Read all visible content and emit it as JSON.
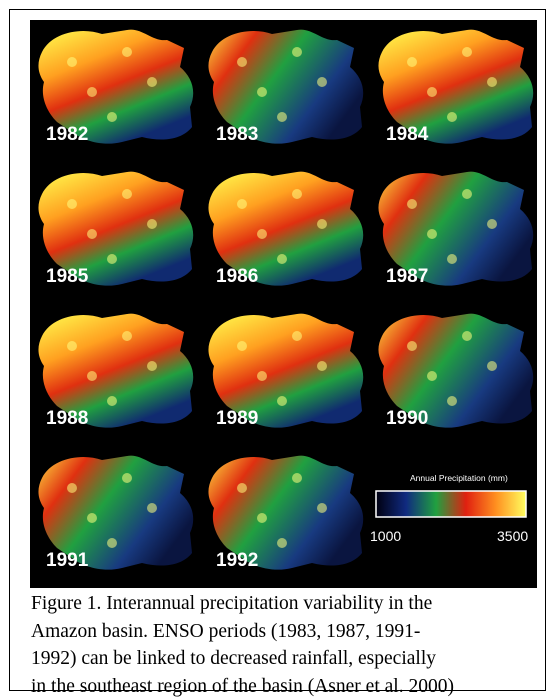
{
  "figure": {
    "years": [
      "1982",
      "1983",
      "1984",
      "1985",
      "1986",
      "1987",
      "1988",
      "1989",
      "1990",
      "1991",
      "1992"
    ],
    "legend": {
      "title": "Annual Precipitation (mm)",
      "min_label": "1000",
      "max_label": "3500"
    },
    "caption": {
      "lines": [
        "Figure 1.  Interannual precipitation variability in the",
        "Amazon basin.  ENSO periods (1983, 1987, 1991-",
        "1992) can be linked to decreased rainfall, especially",
        "in the southeast region of the basin (Asner et al. 2000)"
      ]
    }
  }
}
